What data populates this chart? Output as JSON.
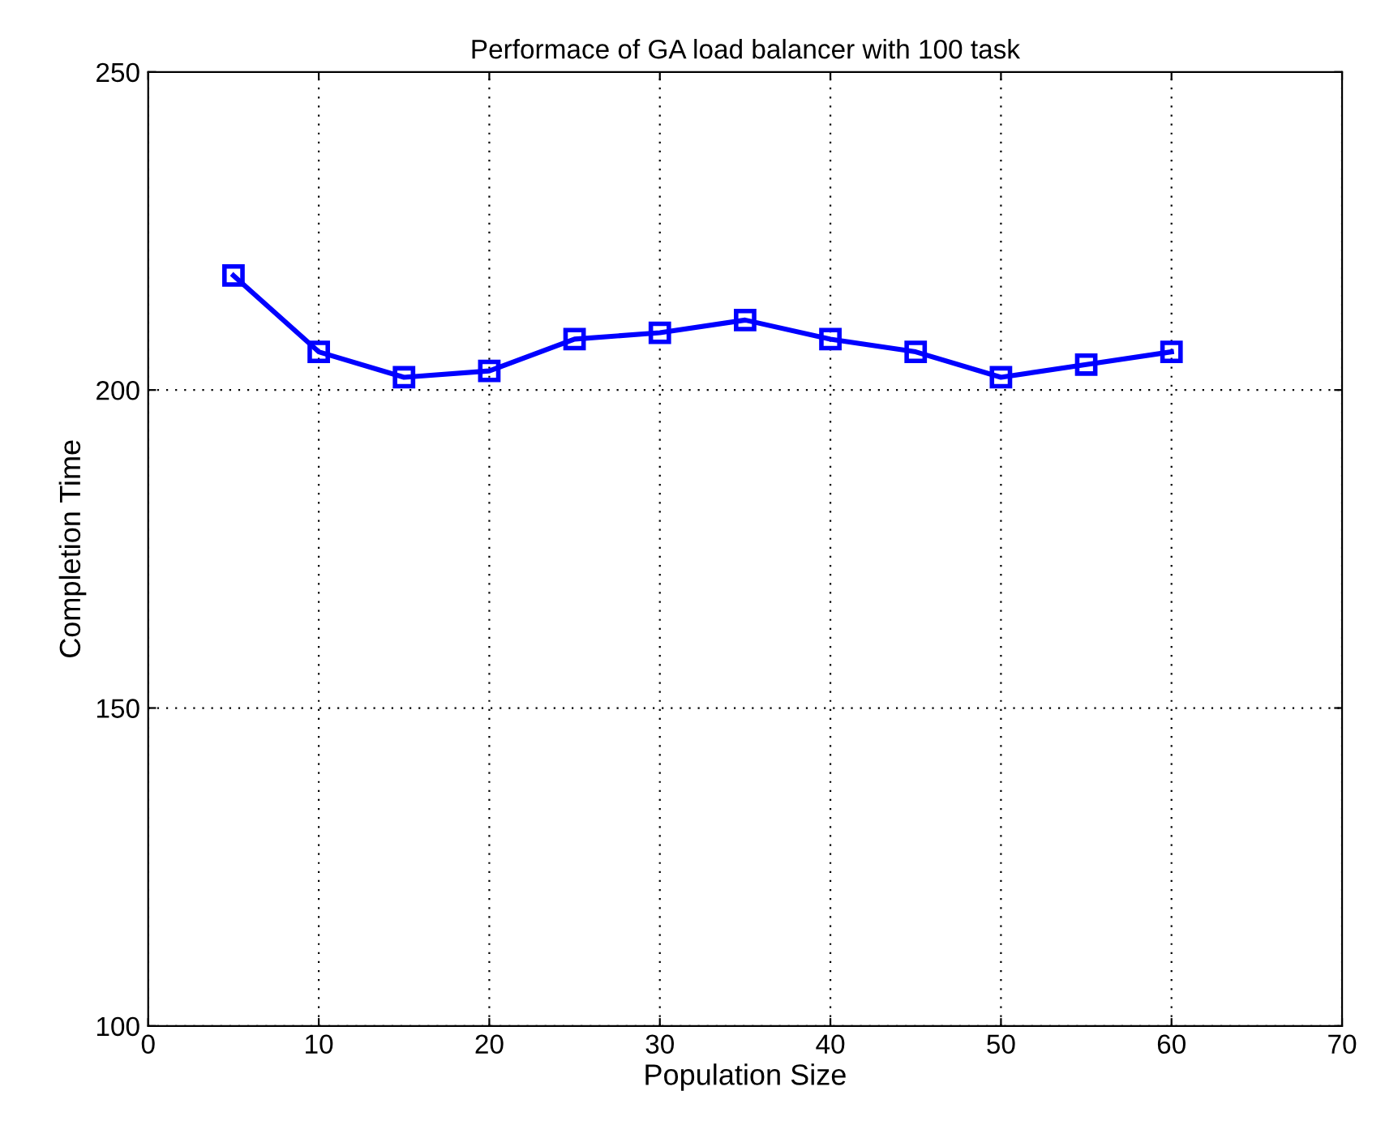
{
  "chart_data": {
    "type": "line",
    "title": "Performace of GA load balancer with 100 task",
    "xlabel": "Population Size",
    "ylabel": "Completion Time",
    "x": [
      5,
      10,
      15,
      20,
      25,
      30,
      35,
      40,
      45,
      50,
      55,
      60
    ],
    "series": [
      {
        "color": "#0000ff",
        "values": [
          218,
          206,
          202,
          203,
          208,
          209,
          211,
          208,
          206,
          202,
          204,
          206
        ]
      }
    ],
    "xlim": [
      0,
      70
    ],
    "xticks": [
      0,
      10,
      20,
      30,
      40,
      50,
      60,
      70
    ],
    "ylim": [
      100,
      250
    ],
    "yticks": [
      100,
      150,
      200,
      250
    ],
    "grid": true,
    "marker": "square",
    "line_style": "solid"
  }
}
